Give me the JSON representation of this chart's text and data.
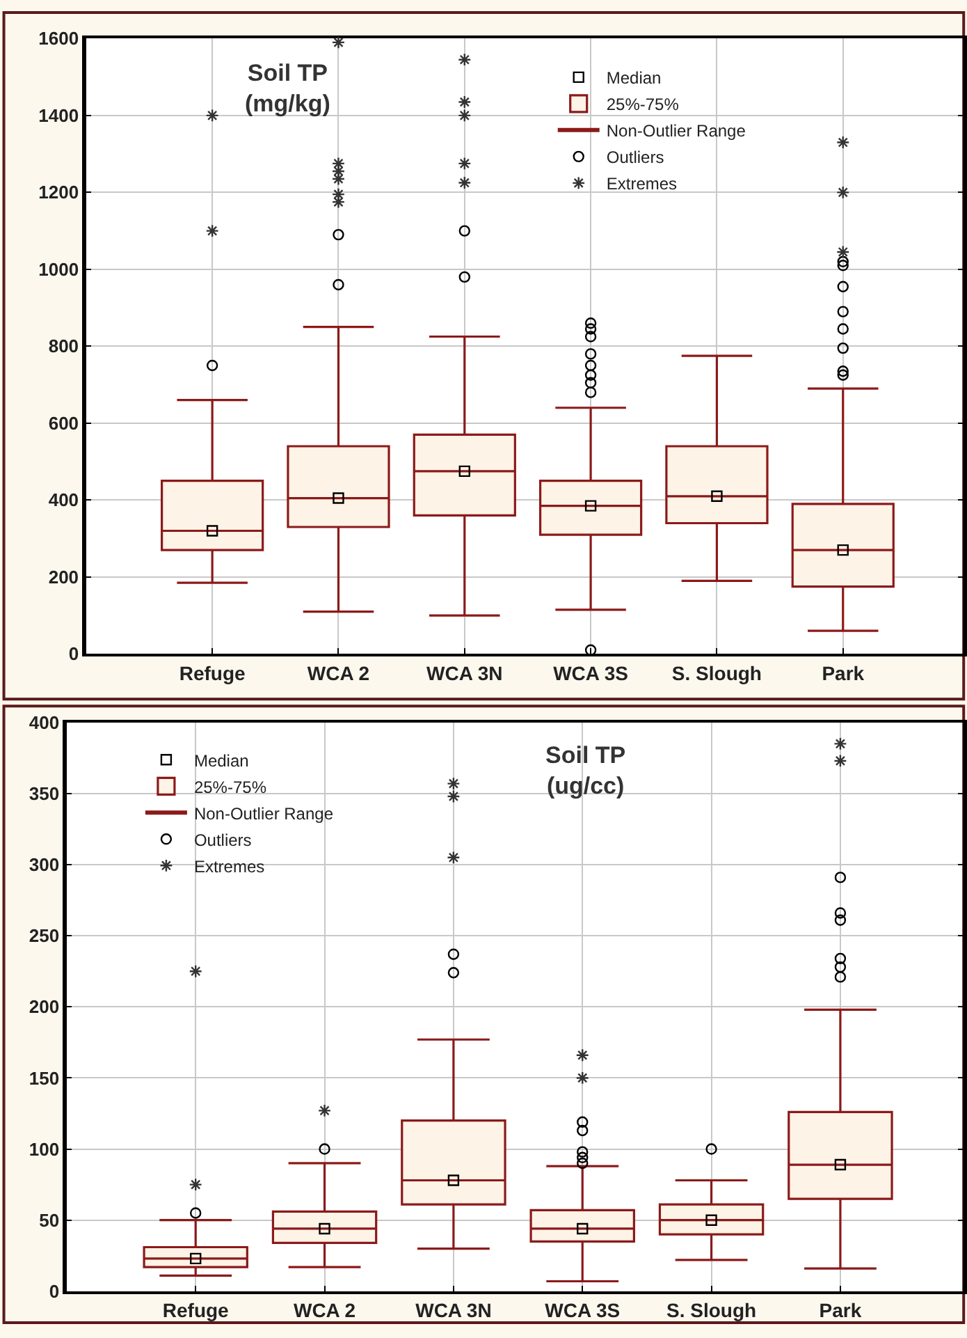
{
  "chart_data": [
    {
      "type": "box",
      "title": "Soil TP\n(mg/kg)",
      "categories": [
        "Refuge",
        "WCA 2",
        "WCA 3N",
        "WCA 3S",
        "S. Slough",
        "Park"
      ],
      "ylim": [
        0,
        1600
      ],
      "yticks": [
        0,
        200,
        400,
        600,
        800,
        1000,
        1200,
        1400,
        1600
      ],
      "grid": true,
      "legend": "top",
      "annotations": [
        "Non-Outlier Range"
      ],
      "series": [
        {
          "name": "Median",
          "type": "scatter",
          "marker": "square",
          "color": "#000000",
          "x": [
            "Refuge",
            "WCA 2",
            "WCA 3N",
            "WCA 3S",
            "S. Slough",
            "Park"
          ],
          "values": [
            320,
            405,
            475,
            385,
            410,
            270
          ]
        },
        {
          "name": "25%-75%",
          "color": "#8b1a1a",
          "boxes": [
            {
              "low": 185,
              "q1": 270,
              "median": 320,
              "q3": 450,
              "high": 660
            },
            {
              "low": 110,
              "q1": 330,
              "median": 405,
              "q3": 540,
              "high": 850
            },
            {
              "low": 100,
              "q1": 360,
              "median": 475,
              "q3": 570,
              "high": 825
            },
            {
              "low": 115,
              "q1": 310,
              "median": 385,
              "q3": 450,
              "high": 640
            },
            {
              "low": 190,
              "q1": 340,
              "median": 410,
              "q3": 540,
              "high": 775
            },
            {
              "low": 60,
              "q1": 175,
              "median": 270,
              "q3": 390,
              "high": 690
            }
          ]
        },
        {
          "name": "Outliers",
          "type": "scatter",
          "marker": "circle",
          "color": "#000000",
          "x": [
            "Refuge",
            "WCA 2",
            "WCA 2",
            "WCA 3N",
            "WCA 3N",
            "WCA 3S",
            "WCA 3S",
            "WCA 3S",
            "WCA 3S",
            "WCA 3S",
            "WCA 3S",
            "WCA 3S",
            "WCA 3S",
            "WCA 3S",
            "Park",
            "Park",
            "Park",
            "Park",
            "Park",
            "Park",
            "Park",
            "Park"
          ],
          "values": [
            750,
            960,
            1090,
            980,
            1100,
            10,
            680,
            705,
            725,
            750,
            780,
            825,
            845,
            860,
            725,
            735,
            795,
            845,
            890,
            955,
            1010,
            1020
          ]
        },
        {
          "name": "Extremes",
          "type": "scatter",
          "marker": "cross",
          "color": "#333333",
          "x": [
            "Refuge",
            "Refuge",
            "WCA 2",
            "WCA 2",
            "WCA 2",
            "WCA 2",
            "WCA 2",
            "WCA 2",
            "WCA 3N",
            "WCA 3N",
            "WCA 3N",
            "WCA 3N",
            "WCA 3N",
            "Park",
            "Park",
            "Park"
          ],
          "values": [
            1100,
            1400,
            1175,
            1195,
            1235,
            1255,
            1275,
            1590,
            1225,
            1275,
            1400,
            1435,
            1545,
            1045,
            1200,
            1330
          ]
        }
      ]
    },
    {
      "type": "box",
      "title": "Soil TP\n(ug/cc)",
      "categories": [
        "Refuge",
        "WCA 2",
        "WCA 3N",
        "WCA 3S",
        "S. Slough",
        "Park"
      ],
      "ylim": [
        0,
        400
      ],
      "yticks": [
        0,
        50,
        100,
        150,
        200,
        250,
        300,
        350,
        400
      ],
      "grid": true,
      "legend": "top left",
      "annotations": [
        "Non-Outlier Range"
      ],
      "series": [
        {
          "name": "Median",
          "type": "scatter",
          "marker": "square",
          "color": "#000000",
          "x": [
            "Refuge",
            "WCA 2",
            "WCA 3N",
            "WCA 3S",
            "S. Slough",
            "Park"
          ],
          "values": [
            23,
            44,
            78,
            44,
            50,
            89
          ]
        },
        {
          "name": "25%-75%",
          "color": "#8b1a1a",
          "boxes": [
            {
              "low": 11,
              "q1": 17,
              "median": 23,
              "q3": 31,
              "high": 50
            },
            {
              "low": 17,
              "q1": 34,
              "median": 44,
              "q3": 56,
              "high": 90
            },
            {
              "low": 30,
              "q1": 61,
              "median": 78,
              "q3": 120,
              "high": 177
            },
            {
              "low": 7,
              "q1": 35,
              "median": 44,
              "q3": 57,
              "high": 88
            },
            {
              "low": 22,
              "q1": 40,
              "median": 50,
              "q3": 61,
              "high": 78
            },
            {
              "low": 16,
              "q1": 65,
              "median": 89,
              "q3": 126,
              "high": 198
            }
          ]
        },
        {
          "name": "Outliers",
          "type": "scatter",
          "marker": "circle",
          "color": "#000000",
          "x": [
            "Refuge",
            "WCA 2",
            "WCA 3N",
            "WCA 3N",
            "WCA 3S",
            "WCA 3S",
            "WCA 3S",
            "WCA 3S",
            "WCA 3S",
            "S. Slough",
            "Park",
            "Park",
            "Park",
            "Park",
            "Park",
            "Park"
          ],
          "values": [
            55,
            100,
            224,
            237,
            90,
            94,
            98,
            113,
            119,
            100,
            221,
            228,
            234,
            261,
            266,
            291
          ]
        },
        {
          "name": "Extremes",
          "type": "scatter",
          "marker": "cross",
          "color": "#333333",
          "x": [
            "Refuge",
            "Refuge",
            "WCA 2",
            "WCA 3N",
            "WCA 3N",
            "WCA 3N",
            "WCA 3S",
            "WCA 3S",
            "Park",
            "Park"
          ],
          "values": [
            75,
            225,
            127,
            305,
            348,
            357,
            150,
            166,
            373,
            385
          ]
        }
      ]
    }
  ]
}
